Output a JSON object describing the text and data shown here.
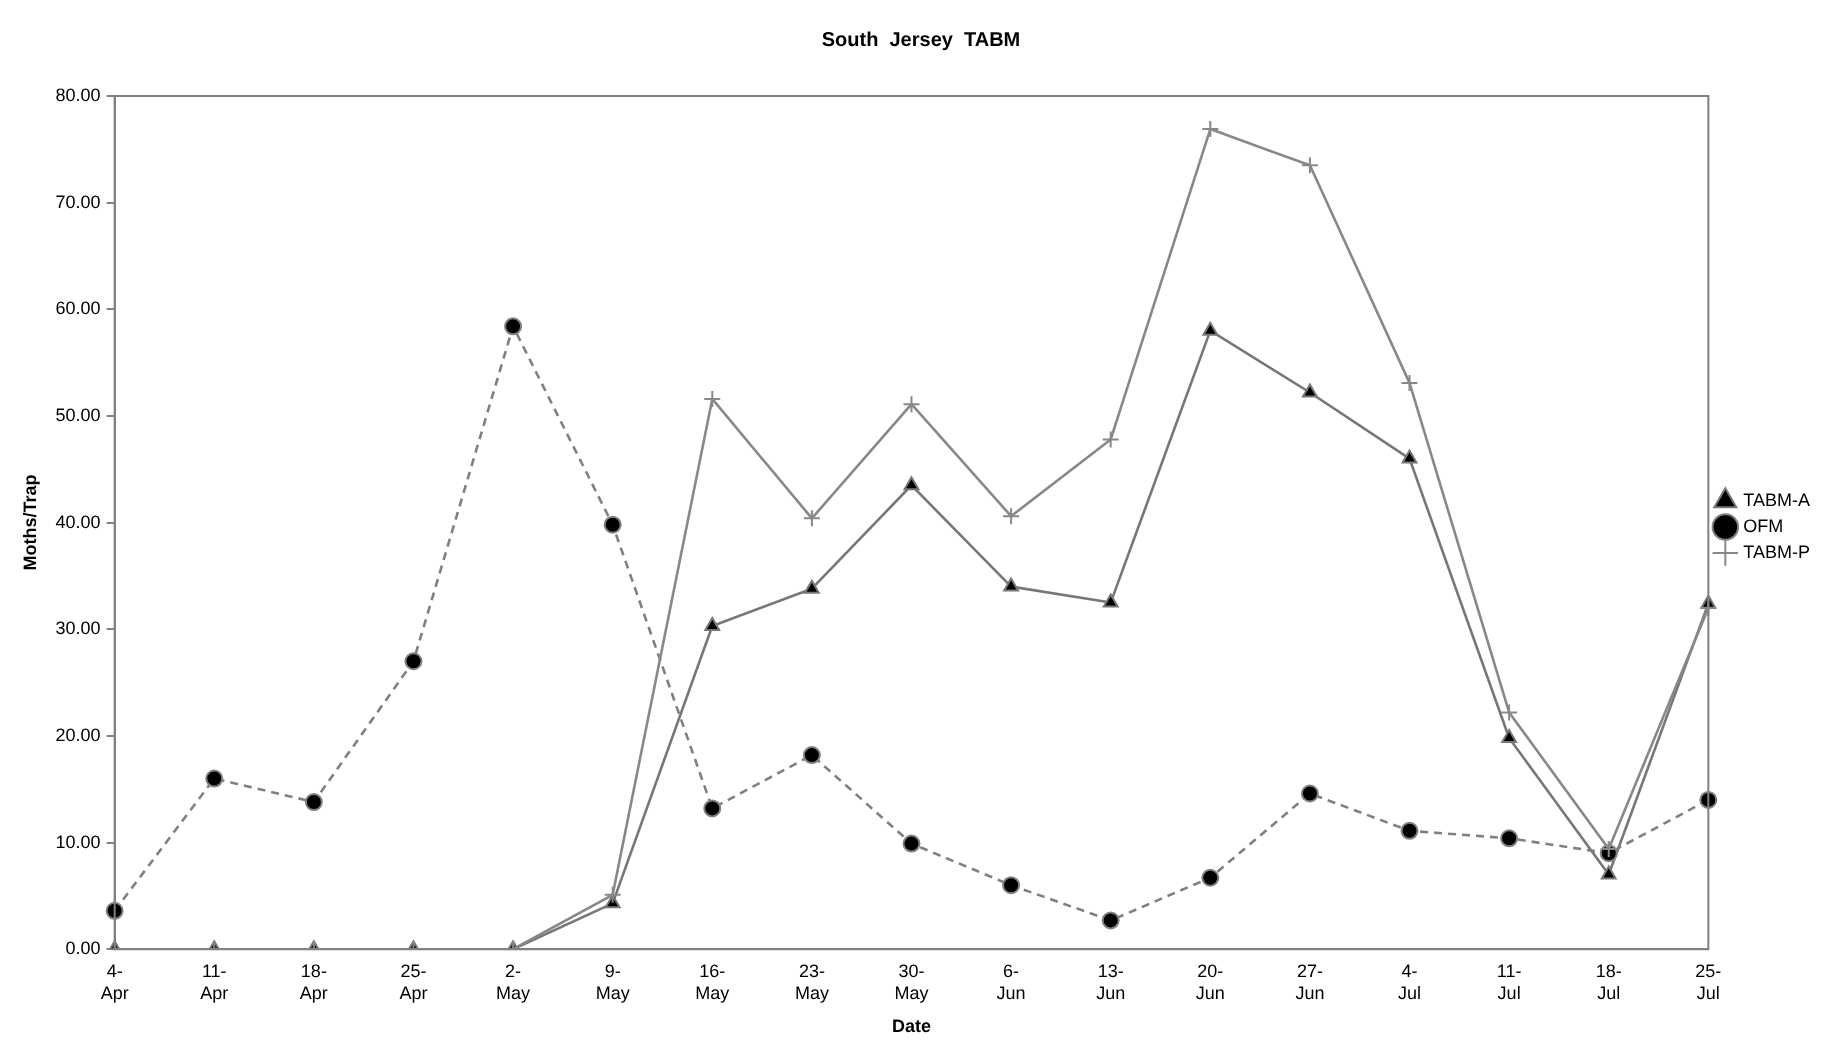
{
  "chart_data": {
    "type": "line",
    "title": "South  Jersey  TABM",
    "xlabel": "Date",
    "ylabel": "Moths/Trap",
    "categories": [
      "4-Apr",
      "11-Apr",
      "18-Apr",
      "25-Apr",
      "2-May",
      "9-May",
      "16-May",
      "23-May",
      "30-May",
      "6-Jun",
      "13-Jun",
      "20-Jun",
      "27-Jun",
      "4-Jul",
      "11-Jul",
      "18-Jul",
      "25-Jul"
    ],
    "series": [
      {
        "name": "TABM-A",
        "color": "#777777",
        "marker": "triangle",
        "line_style": "solid",
        "values": [
          0,
          0,
          0,
          0,
          0,
          4.3,
          30.3,
          33.8,
          43.5,
          34.0,
          32.5,
          58.0,
          52.2,
          46.0,
          19.8,
          7.0,
          32.4
        ]
      },
      {
        "name": "OFM",
        "color": "#808080",
        "marker": "circle",
        "line_style": "dashed",
        "values": [
          3.6,
          16.0,
          13.8,
          27.0,
          58.4,
          39.8,
          13.2,
          18.2,
          9.9,
          6.0,
          2.7,
          6.7,
          14.6,
          11.1,
          10.4,
          9.0,
          14.0
        ]
      },
      {
        "name": "TABM-P",
        "color": "#888888",
        "marker": "cross",
        "line_style": "solid",
        "values": [
          0,
          0,
          0,
          0,
          0,
          5.1,
          51.6,
          40.4,
          51.1,
          40.6,
          47.8,
          76.9,
          73.5,
          53.1,
          22.2,
          9.4,
          32.0
        ]
      }
    ],
    "ylim": [
      0,
      80
    ],
    "yticks": [
      {
        "value": 0,
        "label": "0.00"
      },
      {
        "value": 10,
        "label": "10.00"
      },
      {
        "value": 20,
        "label": "20.00"
      },
      {
        "value": 30,
        "label": "30.00"
      },
      {
        "value": 40,
        "label": "40.00"
      },
      {
        "value": 50,
        "label": "50.00"
      },
      {
        "value": 60,
        "label": "60.00"
      },
      {
        "value": 70,
        "label": "70.00"
      },
      {
        "value": 80,
        "label": "80.00"
      }
    ],
    "grid": false,
    "legend": "right"
  }
}
